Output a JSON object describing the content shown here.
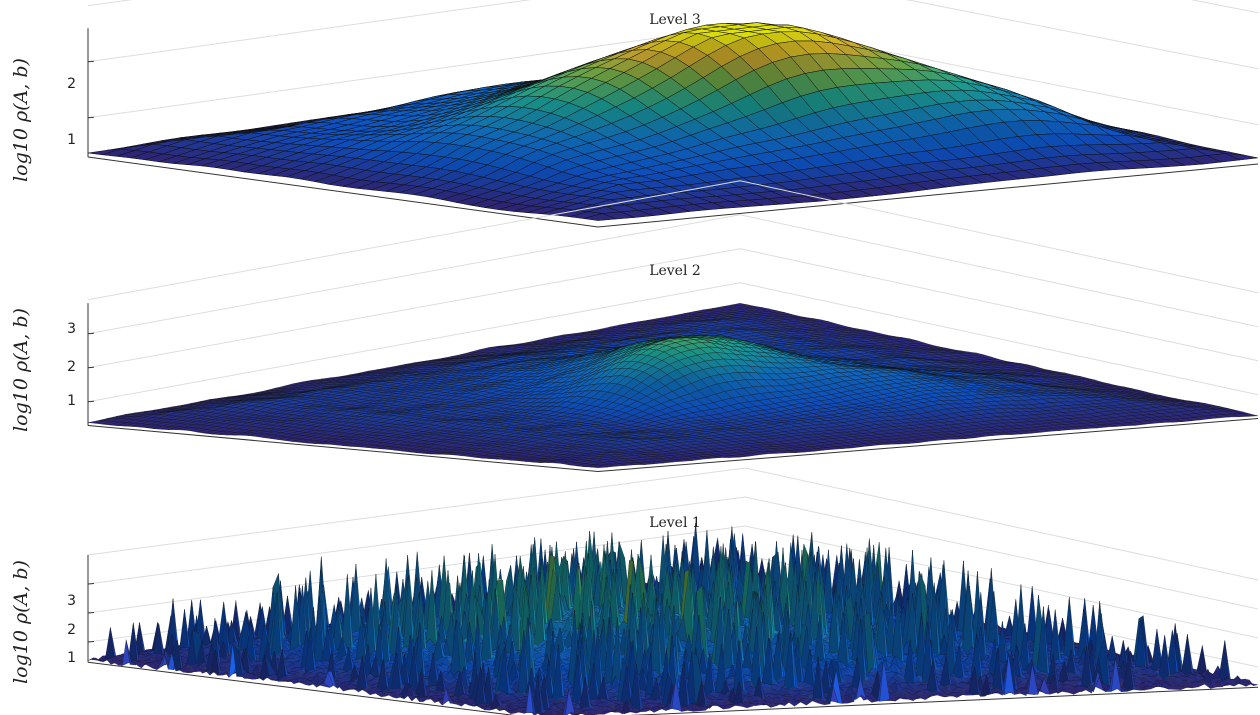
{
  "chart_data": [
    {
      "type": "surface",
      "title": "Level 3",
      "ylabel": "log10 ρ(A, b)",
      "zticks": [
        "1",
        "2"
      ],
      "zlim": [
        0.3,
        2.6
      ],
      "grid": true,
      "colormap": "parula",
      "resolution": 36
    },
    {
      "type": "surface",
      "title": "Level 2",
      "ylabel": "log10 ρ(A, b)",
      "zticks": [
        "1",
        "2",
        "3"
      ],
      "zlim": [
        0.3,
        3.9
      ],
      "grid": true,
      "colormap": "parula",
      "resolution": 70
    },
    {
      "type": "surface",
      "title": "Level 1",
      "ylabel": "log10 ρ(A, b)",
      "zticks": [
        "1",
        "2",
        "3"
      ],
      "zlim": [
        0.3,
        4.0
      ],
      "grid": true,
      "colormap": "parula",
      "resolution": 120
    }
  ],
  "colors": {
    "low": "#352a87",
    "mid": "#1fb3a5",
    "high": "#f9fb0e",
    "mesh": "#101010",
    "axis": "#333333",
    "grid": "#dddddd"
  }
}
